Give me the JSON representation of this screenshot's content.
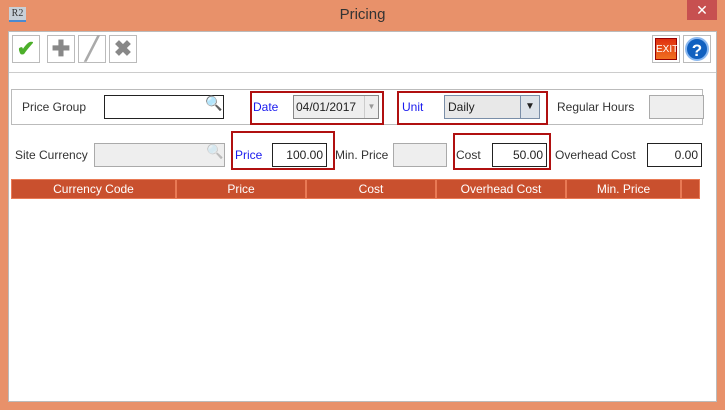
{
  "window": {
    "title": "Pricing",
    "app_icon": "R2",
    "close": "✕"
  },
  "toolbar": {
    "save": "check-icon",
    "add": "plus-icon",
    "edit": "pencil-icon",
    "delete": "x-icon",
    "exit_label": "EXIT",
    "help": "?"
  },
  "form": {
    "price_group": {
      "label": "Price Group",
      "value": ""
    },
    "date": {
      "label": "Date",
      "value": "04/01/2017"
    },
    "unit": {
      "label": "Unit",
      "value": "Daily"
    },
    "regular_hours": {
      "label": "Regular Hours",
      "value": ""
    },
    "site_currency": {
      "label": "Site Currency",
      "value": ""
    },
    "price": {
      "label": "Price",
      "value": "100.00"
    },
    "min_price": {
      "label": "Min. Price",
      "value": ""
    },
    "cost": {
      "label": "Cost",
      "value": "50.00"
    },
    "overhead_cost": {
      "label": "Overhead Cost",
      "value": "0.00"
    }
  },
  "table": {
    "columns": [
      "Currency Code",
      "Price",
      "Cost",
      "Overhead Cost",
      "Min. Price"
    ],
    "rows": []
  },
  "colors": {
    "frame": "#E8916A",
    "header": "#C9502E",
    "highlight": "#B01010",
    "label_blue": "#1a1aee"
  }
}
